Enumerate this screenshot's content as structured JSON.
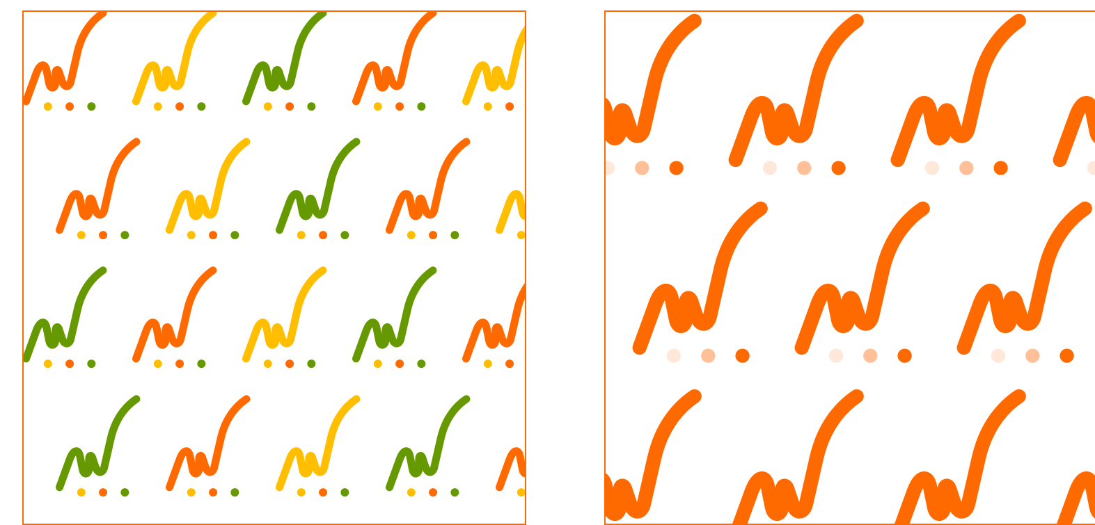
{
  "palettes": {
    "left": [
      "#ff6a00",
      "#ffbf00",
      "#669900"
    ],
    "right": [
      "#ff6a00",
      "#ffbf98",
      "#ffe8da"
    ]
  },
  "motif": {
    "icon": "squiggle-with-dots-icon",
    "dot_count": 3
  },
  "panels": [
    {
      "id": "left",
      "border_color": "#ff6a00",
      "pattern_colors": [
        [
          "#ff6a00",
          "#ffbf00",
          "#669900",
          "#ff6a00",
          "#ffbf00"
        ],
        [
          "#ff6a00",
          "#ffbf00",
          "#669900",
          "#ff6a00",
          "#ffbf00"
        ],
        [
          "#669900",
          "#ff6a00",
          "#ffbf00",
          "#669900",
          "#ff6a00"
        ],
        [
          "#669900",
          "#ff6a00",
          "#ffbf00",
          "#669900",
          "#ff6a00"
        ]
      ],
      "dot_colors": [
        "#ffbf00",
        "#ff6a00",
        "#669900"
      ]
    },
    {
      "id": "right",
      "border_color": "#ff6a00",
      "pattern_colors": [
        [
          "#ff6a00",
          "#ff6a00",
          "#ff6a00",
          "#ff6a00"
        ],
        [
          "#ff6a00",
          "#ff6a00",
          "#ff6a00"
        ],
        [
          "#ff6a00",
          "#ff6a00",
          "#ff6a00",
          "#ff6a00"
        ]
      ],
      "dot_colors": [
        "#ffe8da",
        "#ffbf98",
        "#ff6a00"
      ]
    }
  ]
}
